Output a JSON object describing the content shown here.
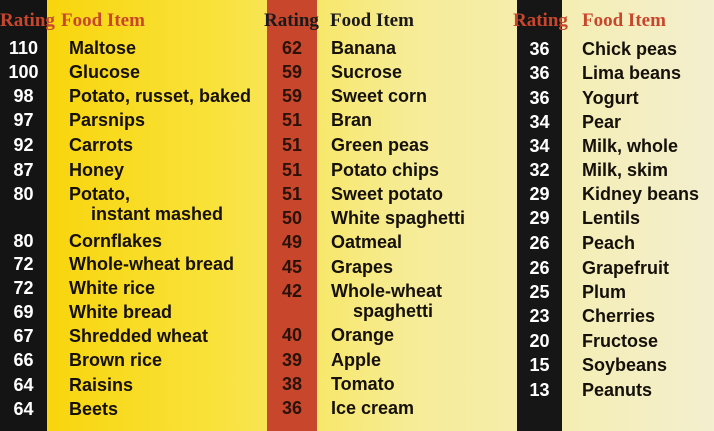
{
  "header": {
    "rating": "Rating",
    "food": "Food Item"
  },
  "columns": [
    {
      "items": [
        {
          "rating": "110",
          "food": "Maltose"
        },
        {
          "rating": "100",
          "food": "Glucose"
        },
        {
          "rating": "98",
          "food": "Potato, russet, baked"
        },
        {
          "rating": "97",
          "food": "Parsnips"
        },
        {
          "rating": "92",
          "food": "Carrots"
        },
        {
          "rating": "87",
          "food": "Honey"
        },
        {
          "rating": "80",
          "food": "Potato,",
          "food_line2": "instant mashed"
        },
        {
          "rating": "80",
          "food": "Cornflakes"
        },
        {
          "rating": "72",
          "food": "Whole-wheat bread"
        },
        {
          "rating": "72",
          "food": "White rice"
        },
        {
          "rating": "69",
          "food": "White bread"
        },
        {
          "rating": "67",
          "food": "Shredded wheat"
        },
        {
          "rating": "66",
          "food": "Brown rice"
        },
        {
          "rating": "64",
          "food": "Raisins"
        },
        {
          "rating": "64",
          "food": "Beets"
        }
      ]
    },
    {
      "items": [
        {
          "rating": "62",
          "food": "Banana"
        },
        {
          "rating": "59",
          "food": "Sucrose"
        },
        {
          "rating": "59",
          "food": "Sweet corn"
        },
        {
          "rating": "51",
          "food": "Bran"
        },
        {
          "rating": "51",
          "food": "Green peas"
        },
        {
          "rating": "51",
          "food": "Potato chips"
        },
        {
          "rating": "51",
          "food": "Sweet potato"
        },
        {
          "rating": "50",
          "food": "White spaghetti"
        },
        {
          "rating": "49",
          "food": "Oatmeal"
        },
        {
          "rating": "45",
          "food": "Grapes"
        },
        {
          "rating": "42",
          "food": "Whole-wheat",
          "food_line2": "spaghetti"
        },
        {
          "rating": "40",
          "food": "Orange"
        },
        {
          "rating": "39",
          "food": "Apple"
        },
        {
          "rating": "38",
          "food": "Tomato"
        },
        {
          "rating": "36",
          "food": "Ice cream"
        }
      ]
    },
    {
      "items": [
        {
          "rating": "36",
          "food": "Chick peas"
        },
        {
          "rating": "36",
          "food": "Lima beans"
        },
        {
          "rating": "36",
          "food": "Yogurt"
        },
        {
          "rating": "34",
          "food": "Pear"
        },
        {
          "rating": "34",
          "food": "Milk, whole"
        },
        {
          "rating": "32",
          "food": "Milk, skim"
        },
        {
          "rating": "29",
          "food": "Kidney beans"
        },
        {
          "rating": "29",
          "food": "Lentils"
        },
        {
          "rating": "26",
          "food": "Peach"
        },
        {
          "rating": "26",
          "food": "Grapefruit"
        },
        {
          "rating": "25",
          "food": "Plum"
        },
        {
          "rating": "23",
          "food": "Cherries"
        },
        {
          "rating": "20",
          "food": "Fructose"
        },
        {
          "rating": "15",
          "food": "Soybeans"
        },
        {
          "rating": "13",
          "food": "Peanuts"
        }
      ]
    }
  ]
}
